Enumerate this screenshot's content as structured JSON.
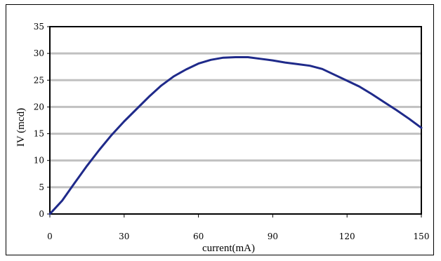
{
  "chart_data": {
    "type": "line",
    "title": "",
    "xlabel": "current(mA)",
    "ylabel": "IV (mcd)",
    "xlim": [
      0,
      150
    ],
    "ylim": [
      0,
      35
    ],
    "x_ticks": [
      0,
      30,
      60,
      90,
      120,
      150
    ],
    "y_ticks": [
      0,
      5,
      10,
      15,
      20,
      25,
      30,
      35
    ],
    "grid": "horizontal",
    "legend": "none",
    "colors": {
      "line": "#1f2a8a",
      "grid": "#c0c0c0",
      "frame": "#000000"
    },
    "series": [
      {
        "x": [
          0,
          1,
          5,
          10,
          15,
          20,
          25,
          30,
          35,
          40,
          45,
          50,
          55,
          60,
          65,
          70,
          75,
          80,
          85,
          90,
          95,
          100,
          105,
          110,
          115,
          120,
          125,
          130,
          135,
          140,
          145,
          150
        ],
        "y": [
          0,
          0.5,
          2.5,
          5.8,
          9.0,
          12.0,
          14.8,
          17.3,
          19.6,
          21.9,
          24.0,
          25.7,
          27.0,
          28.1,
          28.8,
          29.2,
          29.3,
          29.3,
          29.0,
          28.7,
          28.3,
          28.0,
          27.7,
          27.1,
          26.0,
          24.9,
          23.8,
          22.4,
          20.9,
          19.4,
          17.8,
          16.1
        ]
      }
    ]
  }
}
